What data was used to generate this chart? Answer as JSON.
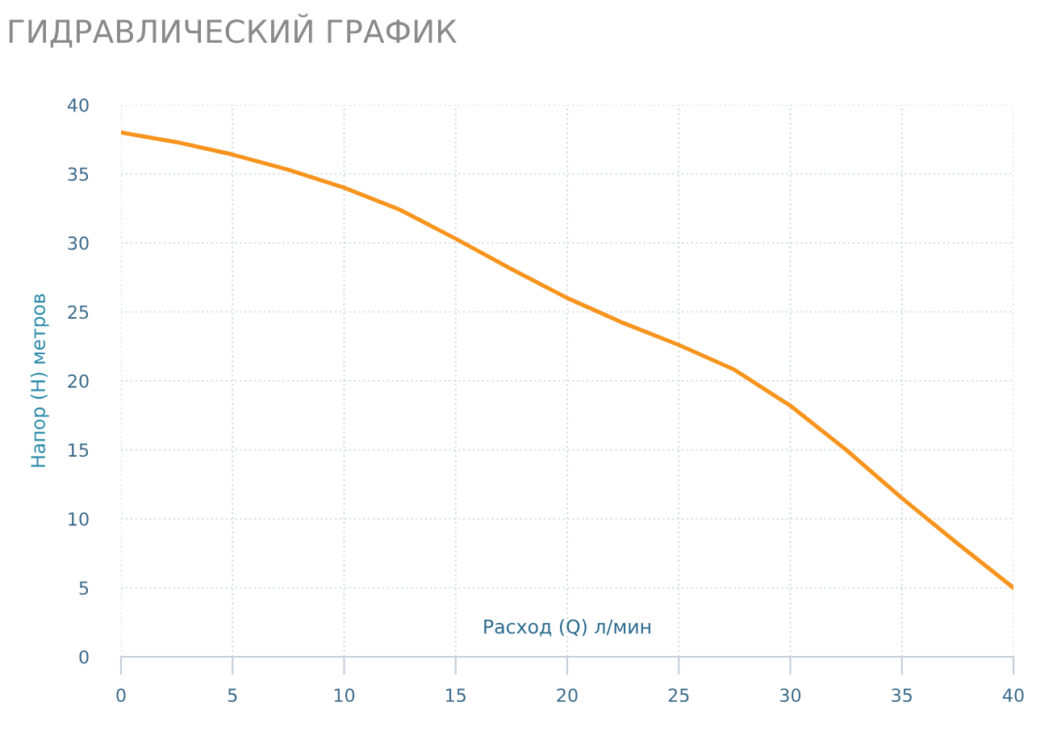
{
  "chart_data": {
    "type": "line",
    "title": "ГИДРАВЛИЧЕСКИЙ ГРАФИК",
    "xlabel": "Расход (Q) л/мин",
    "ylabel": "Напор (Н) метров",
    "x": [
      0,
      2.5,
      5,
      7.5,
      10,
      12.5,
      15,
      17.5,
      20,
      22.5,
      25,
      27.5,
      30,
      32.5,
      35,
      37.5,
      40
    ],
    "series": [
      {
        "color": "#f7941d",
        "values": [
          38,
          37.3,
          36.4,
          35.3,
          34,
          32.4,
          30.3,
          28.1,
          26,
          24.2,
          22.6,
          20.8,
          18.2,
          15,
          11.5,
          8.2,
          5
        ]
      }
    ],
    "xlim": [
      0,
      40
    ],
    "xticks": [
      0,
      5,
      10,
      15,
      20,
      25,
      30,
      35,
      40
    ],
    "ylim": [
      0,
      40
    ],
    "yticks": [
      0,
      5,
      10,
      15,
      20,
      25,
      30,
      35,
      40
    ],
    "grid": true,
    "marker": "none",
    "line_style": "solid"
  }
}
